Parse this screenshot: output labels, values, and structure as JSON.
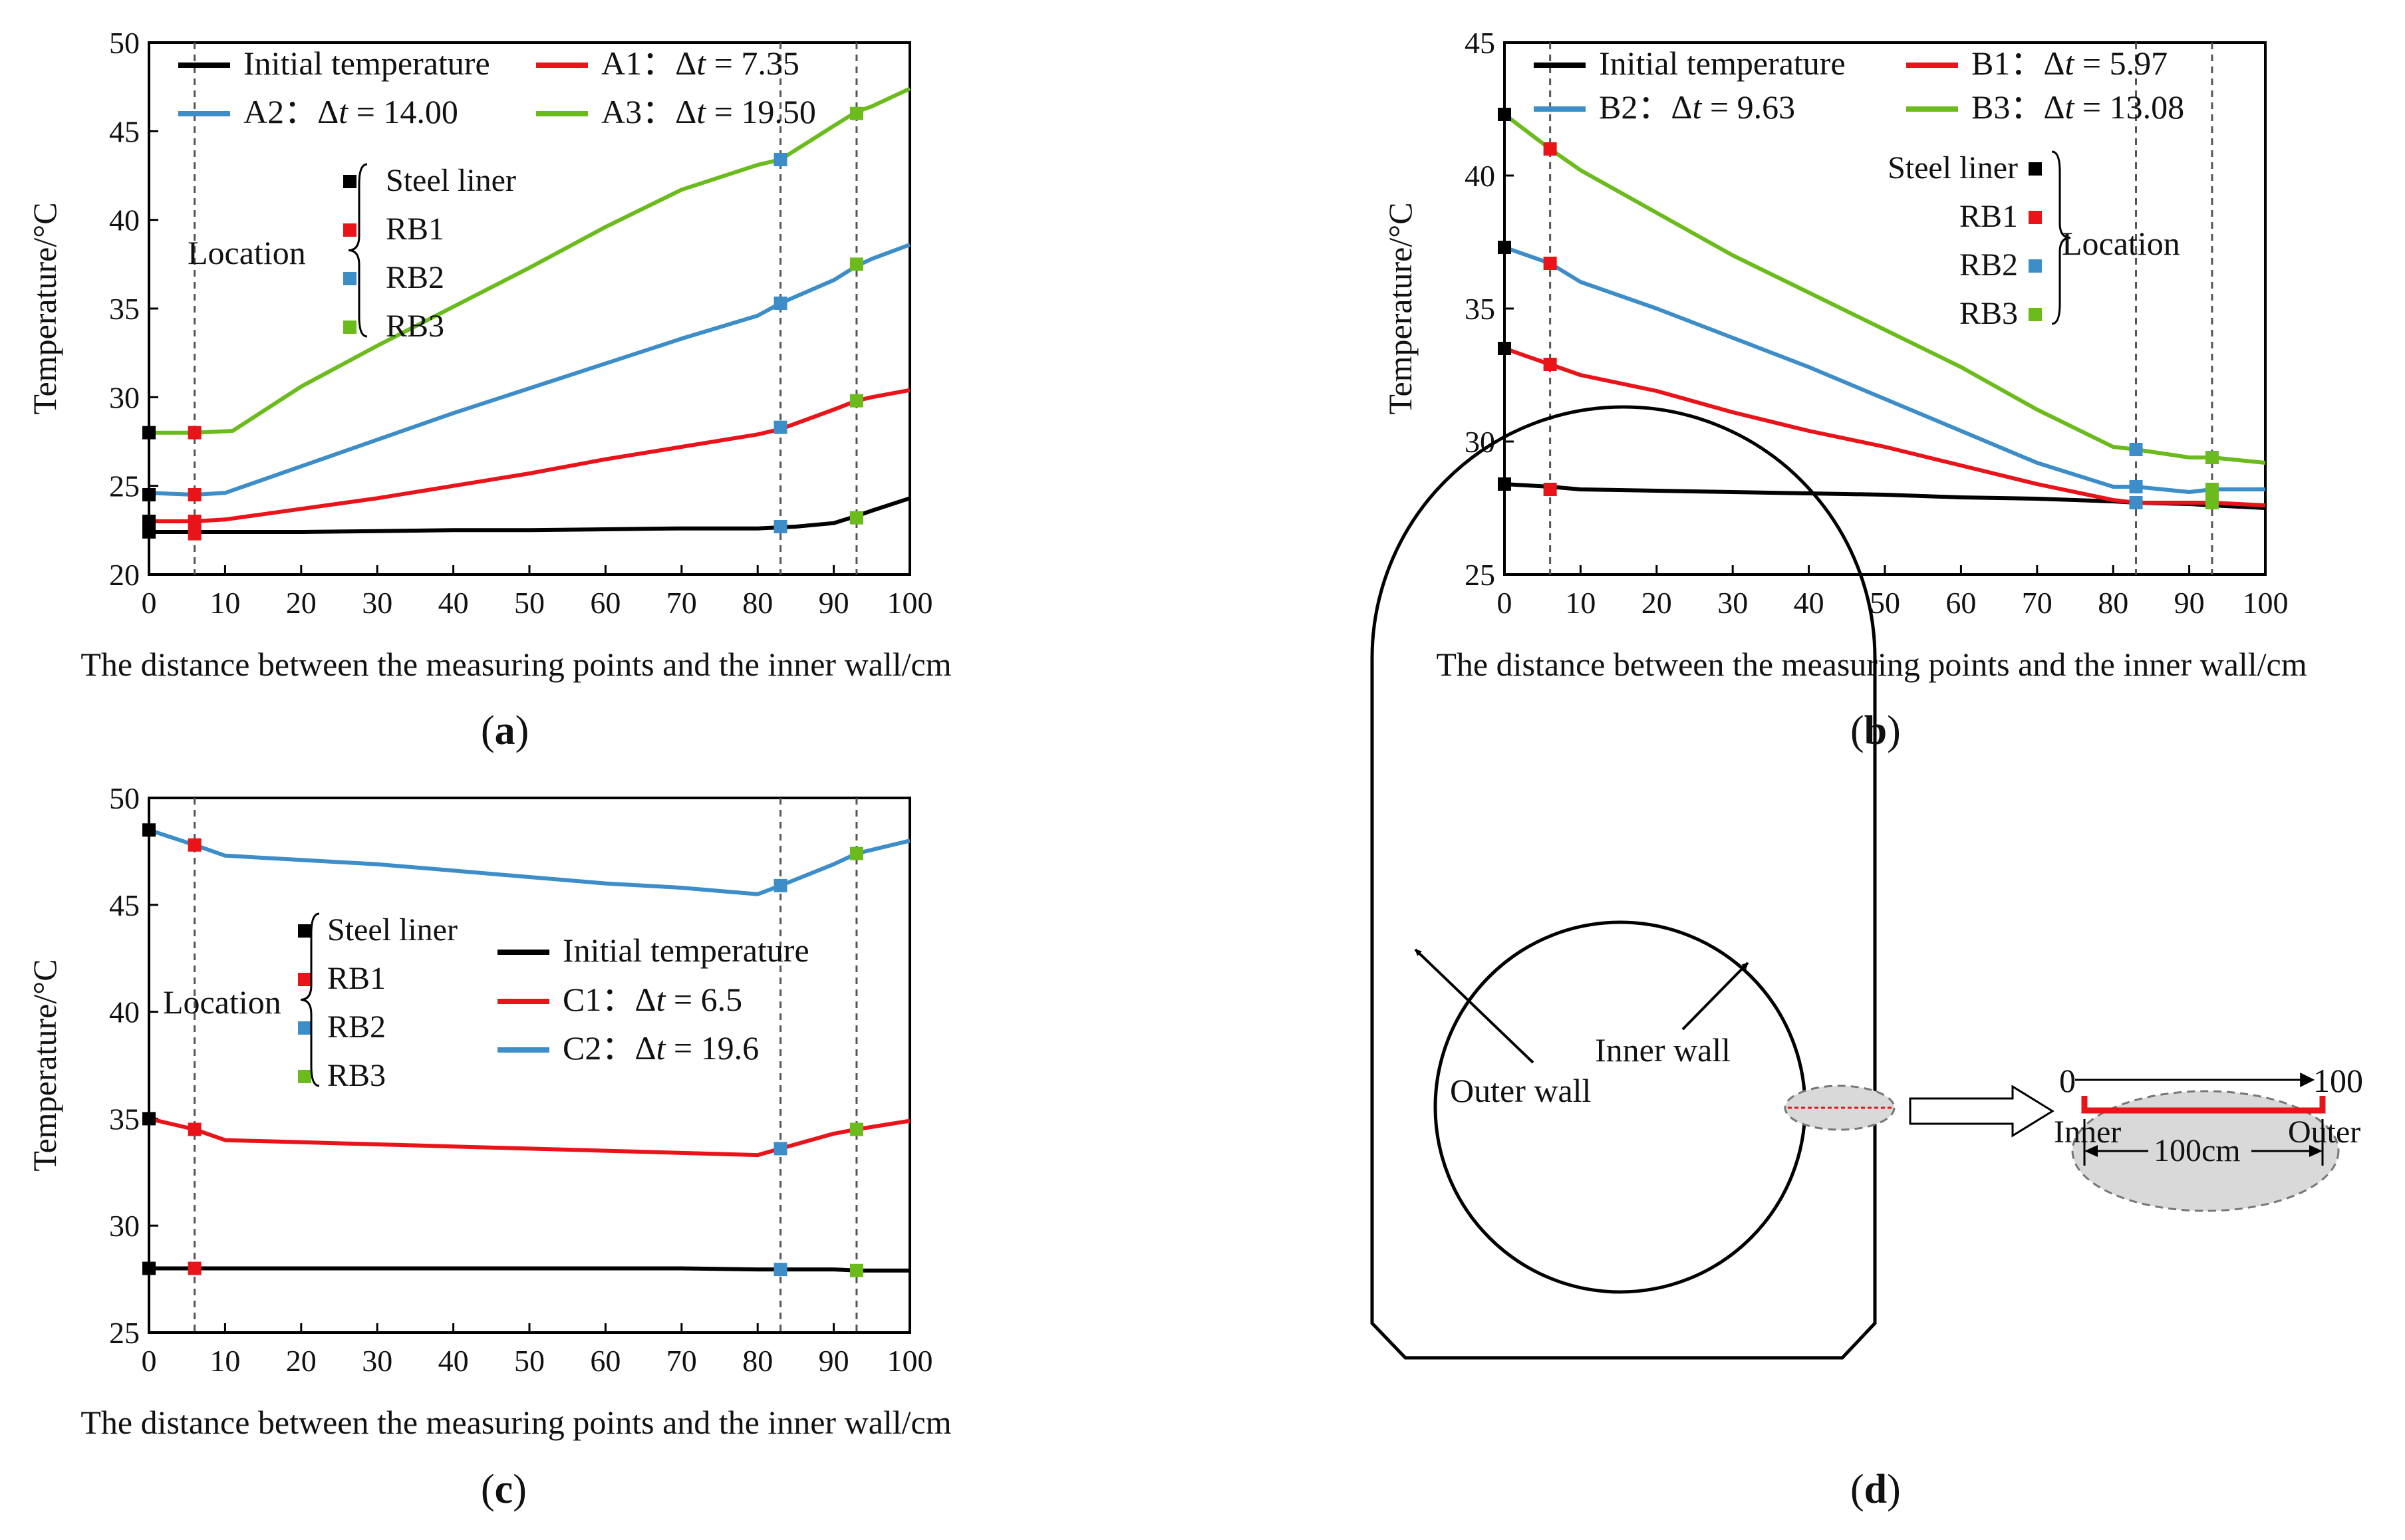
{
  "figure": {
    "captions": [
      {
        "open": "(",
        "letter": "a",
        "close": ")"
      },
      {
        "open": "(",
        "letter": "b",
        "close": ")"
      },
      {
        "open": "(",
        "letter": "c",
        "close": ")"
      },
      {
        "open": "(",
        "letter": "d",
        "close": ")"
      }
    ]
  },
  "colors": {
    "black": "#000000",
    "red": "#e8141a",
    "blue": "#3c8dc8",
    "green": "#6cbb1d"
  },
  "chart_data": [
    {
      "panel": "a",
      "type": "line",
      "xlabel": "The distance between the measuring points and the inner wall/cm",
      "ylabel": "Temperature/°C",
      "xlim": [
        0,
        100
      ],
      "ylim": [
        20,
        50
      ],
      "xticks": [
        0,
        10,
        20,
        30,
        40,
        50,
        60,
        70,
        80,
        90,
        100
      ],
      "yticks": [
        20,
        25,
        30,
        35,
        40,
        45,
        50
      ],
      "grid": false,
      "legend_position": "top",
      "series": [
        {
          "name": "Initial temperature",
          "color": "#000000",
          "x": [
            0,
            5,
            10,
            20,
            30,
            40,
            50,
            60,
            70,
            80,
            85,
            90,
            93,
            95,
            100
          ],
          "y": [
            22.4,
            22.4,
            22.4,
            22.4,
            22.45,
            22.5,
            22.5,
            22.55,
            22.6,
            22.6,
            22.7,
            22.9,
            23.3,
            23.6,
            24.3
          ]
        },
        {
          "name": "A1：Δt = 7.35",
          "color": "#e8141a",
          "x": [
            0,
            6,
            10,
            20,
            30,
            40,
            50,
            60,
            70,
            80,
            83,
            90,
            93,
            95,
            100
          ],
          "y": [
            23.0,
            23.0,
            23.1,
            23.7,
            24.3,
            25.0,
            25.7,
            26.5,
            27.2,
            27.9,
            28.2,
            29.3,
            29.8,
            30.0,
            30.4
          ]
        },
        {
          "name": "A2：Δt = 14.00",
          "color": "#3c8dc8",
          "x": [
            0,
            6,
            10,
            20,
            30,
            40,
            50,
            60,
            70,
            80,
            83,
            90,
            93,
            95,
            100
          ],
          "y": [
            24.6,
            24.5,
            24.6,
            26.1,
            27.6,
            29.1,
            30.5,
            31.9,
            33.3,
            34.6,
            35.3,
            36.6,
            37.4,
            37.8,
            38.6
          ]
        },
        {
          "name": "A3：Δt = 19.50",
          "color": "#6cbb1d",
          "x": [
            0,
            6,
            11,
            20,
            30,
            40,
            50,
            60,
            70,
            80,
            83,
            90,
            93,
            95,
            100
          ],
          "y": [
            28.0,
            28.0,
            28.1,
            30.6,
            32.9,
            35.1,
            37.3,
            39.6,
            41.7,
            43.1,
            43.4,
            45.3,
            46.1,
            46.4,
            47.4
          ]
        }
      ],
      "vlines": [
        6,
        83,
        93
      ],
      "markers": [
        {
          "x": 0,
          "y": 28.0,
          "color": "#000000"
        },
        {
          "x": 0,
          "y": 24.5,
          "color": "#000000"
        },
        {
          "x": 0,
          "y": 23.0,
          "color": "#000000"
        },
        {
          "x": 0,
          "y": 22.4,
          "color": "#000000"
        },
        {
          "x": 6,
          "y": 28.0,
          "color": "#e8141a"
        },
        {
          "x": 6,
          "y": 24.5,
          "color": "#e8141a"
        },
        {
          "x": 6,
          "y": 23.0,
          "color": "#e8141a"
        },
        {
          "x": 6,
          "y": 22.3,
          "color": "#e8141a"
        },
        {
          "x": 83,
          "y": 43.4,
          "color": "#3c8dc8"
        },
        {
          "x": 83,
          "y": 35.3,
          "color": "#3c8dc8"
        },
        {
          "x": 83,
          "y": 28.3,
          "color": "#3c8dc8"
        },
        {
          "x": 83,
          "y": 22.7,
          "color": "#3c8dc8"
        },
        {
          "x": 93,
          "y": 46.0,
          "color": "#6cbb1d"
        },
        {
          "x": 93,
          "y": 37.5,
          "color": "#6cbb1d"
        },
        {
          "x": 93,
          "y": 29.8,
          "color": "#6cbb1d"
        },
        {
          "x": 93,
          "y": 23.2,
          "color": "#6cbb1d"
        }
      ],
      "location_key": {
        "title": "Location",
        "items": [
          {
            "label": "Steel liner",
            "color": "#000000"
          },
          {
            "label": "RB1",
            "color": "#e8141a"
          },
          {
            "label": "RB2",
            "color": "#3c8dc8"
          },
          {
            "label": "RB3",
            "color": "#6cbb1d"
          }
        ]
      }
    },
    {
      "panel": "b",
      "type": "line",
      "xlabel": "The distance between the measuring points and the inner wall/cm",
      "ylabel": "Temperature/°C",
      "xlim": [
        0,
        100
      ],
      "ylim": [
        25,
        45
      ],
      "xticks": [
        0,
        10,
        20,
        30,
        40,
        50,
        60,
        70,
        80,
        90,
        100
      ],
      "yticks": [
        25,
        30,
        35,
        40,
        45
      ],
      "grid": false,
      "legend_position": "top",
      "series": [
        {
          "name": "Initial temperature",
          "color": "#000000",
          "x": [
            0,
            6,
            10,
            20,
            30,
            40,
            50,
            60,
            70,
            80,
            83,
            90,
            93,
            100
          ],
          "y": [
            28.4,
            28.3,
            28.2,
            28.15,
            28.1,
            28.05,
            28.0,
            27.9,
            27.85,
            27.75,
            27.7,
            27.65,
            27.6,
            27.5
          ]
        },
        {
          "name": "B1：Δt = 5.97",
          "color": "#e8141a",
          "x": [
            0,
            6,
            10,
            20,
            30,
            40,
            50,
            60,
            70,
            80,
            83,
            90,
            93,
            100
          ],
          "y": [
            33.5,
            32.9,
            32.5,
            31.9,
            31.1,
            30.4,
            29.8,
            29.1,
            28.4,
            27.8,
            27.7,
            27.7,
            27.7,
            27.6
          ]
        },
        {
          "name": "B2：Δt = 9.63",
          "color": "#3c8dc8",
          "x": [
            0,
            6,
            10,
            20,
            30,
            40,
            50,
            60,
            70,
            80,
            83,
            90,
            93,
            100
          ],
          "y": [
            37.3,
            36.7,
            36.0,
            35.0,
            33.9,
            32.8,
            31.6,
            30.4,
            29.2,
            28.3,
            28.3,
            28.1,
            28.2,
            28.2
          ]
        },
        {
          "name": "B3：Δt = 13.08",
          "color": "#6cbb1d",
          "x": [
            0,
            6,
            10,
            20,
            30,
            40,
            50,
            60,
            70,
            80,
            83,
            90,
            93,
            100
          ],
          "y": [
            42.3,
            41.0,
            40.2,
            38.6,
            37.0,
            35.6,
            34.2,
            32.8,
            31.2,
            29.8,
            29.7,
            29.4,
            29.4,
            29.2
          ]
        }
      ],
      "vlines": [
        6,
        83,
        93
      ],
      "markers": [
        {
          "x": 0,
          "y": 42.3,
          "color": "#000000"
        },
        {
          "x": 0,
          "y": 37.3,
          "color": "#000000"
        },
        {
          "x": 0,
          "y": 33.5,
          "color": "#000000"
        },
        {
          "x": 0,
          "y": 28.4,
          "color": "#000000"
        },
        {
          "x": 6,
          "y": 41.0,
          "color": "#e8141a"
        },
        {
          "x": 6,
          "y": 36.7,
          "color": "#e8141a"
        },
        {
          "x": 6,
          "y": 32.9,
          "color": "#e8141a"
        },
        {
          "x": 6,
          "y": 28.2,
          "color": "#e8141a"
        },
        {
          "x": 83,
          "y": 29.7,
          "color": "#3c8dc8"
        },
        {
          "x": 83,
          "y": 28.3,
          "color": "#3c8dc8"
        },
        {
          "x": 83,
          "y": 27.7,
          "color": "#3c8dc8"
        },
        {
          "x": 93,
          "y": 29.4,
          "color": "#6cbb1d"
        },
        {
          "x": 93,
          "y": 28.2,
          "color": "#6cbb1d"
        },
        {
          "x": 93,
          "y": 27.7,
          "color": "#6cbb1d"
        }
      ],
      "location_key": {
        "title": "Location",
        "items": [
          {
            "label": "Steel liner",
            "color": "#000000"
          },
          {
            "label": "RB1",
            "color": "#e8141a"
          },
          {
            "label": "RB2",
            "color": "#3c8dc8"
          },
          {
            "label": "RB3",
            "color": "#6cbb1d"
          }
        ]
      }
    },
    {
      "panel": "c",
      "type": "line",
      "xlabel": "The distance between the measuring points and the inner wall/cm",
      "ylabel": "Temperature/°C",
      "xlim": [
        0,
        100
      ],
      "ylim": [
        25,
        50
      ],
      "xticks": [
        0,
        10,
        20,
        30,
        40,
        50,
        60,
        70,
        80,
        90,
        100
      ],
      "yticks": [
        25,
        30,
        35,
        40,
        45,
        50
      ],
      "grid": false,
      "legend_position": "middle-right",
      "series": [
        {
          "name": "Initial temperature",
          "color": "#000000",
          "x": [
            0,
            6,
            10,
            20,
            30,
            40,
            50,
            60,
            70,
            80,
            83,
            90,
            93,
            100
          ],
          "y": [
            28.0,
            28.0,
            28.0,
            28.0,
            28.0,
            28.0,
            28.0,
            28.0,
            28.0,
            27.95,
            27.95,
            27.95,
            27.9,
            27.9
          ]
        },
        {
          "name": "C1：Δt = 6.5",
          "color": "#e8141a",
          "x": [
            0,
            6,
            10,
            20,
            30,
            40,
            50,
            60,
            70,
            80,
            83,
            90,
            93,
            100
          ],
          "y": [
            35.0,
            34.5,
            34.0,
            33.9,
            33.8,
            33.7,
            33.6,
            33.5,
            33.4,
            33.3,
            33.6,
            34.3,
            34.5,
            34.9
          ]
        },
        {
          "name": "C2：Δt = 19.6",
          "color": "#3c8dc8",
          "x": [
            0,
            6,
            10,
            20,
            30,
            40,
            50,
            60,
            70,
            80,
            83,
            90,
            93,
            100
          ],
          "y": [
            48.5,
            47.8,
            47.3,
            47.1,
            46.9,
            46.6,
            46.3,
            46.0,
            45.8,
            45.5,
            45.9,
            46.9,
            47.4,
            48.0
          ]
        }
      ],
      "vlines": [
        6,
        83,
        93
      ],
      "markers": [
        {
          "x": 0,
          "y": 48.5,
          "color": "#000000"
        },
        {
          "x": 0,
          "y": 35.0,
          "color": "#000000"
        },
        {
          "x": 0,
          "y": 28.0,
          "color": "#000000"
        },
        {
          "x": 6,
          "y": 47.8,
          "color": "#e8141a"
        },
        {
          "x": 6,
          "y": 34.5,
          "color": "#e8141a"
        },
        {
          "x": 6,
          "y": 28.0,
          "color": "#e8141a"
        },
        {
          "x": 83,
          "y": 45.9,
          "color": "#3c8dc8"
        },
        {
          "x": 83,
          "y": 33.6,
          "color": "#3c8dc8"
        },
        {
          "x": 83,
          "y": 27.95,
          "color": "#3c8dc8"
        },
        {
          "x": 93,
          "y": 47.4,
          "color": "#6cbb1d"
        },
        {
          "x": 93,
          "y": 34.5,
          "color": "#6cbb1d"
        },
        {
          "x": 93,
          "y": 27.9,
          "color": "#6cbb1d"
        }
      ],
      "location_key": {
        "title": "Location",
        "items": [
          {
            "label": "Steel liner",
            "color": "#000000"
          },
          {
            "label": "RB1",
            "color": "#e8141a"
          },
          {
            "label": "RB2",
            "color": "#3c8dc8"
          },
          {
            "label": "RB3",
            "color": "#6cbb1d"
          }
        ]
      }
    }
  ],
  "diagram": {
    "outer_wall_label": "Outer wall",
    "inner_wall_label": "Inner wall",
    "zoom_start": "0",
    "zoom_end": "100",
    "zoom_inner": "Inner",
    "zoom_outer": "Outer",
    "zoom_length": "100cm"
  }
}
